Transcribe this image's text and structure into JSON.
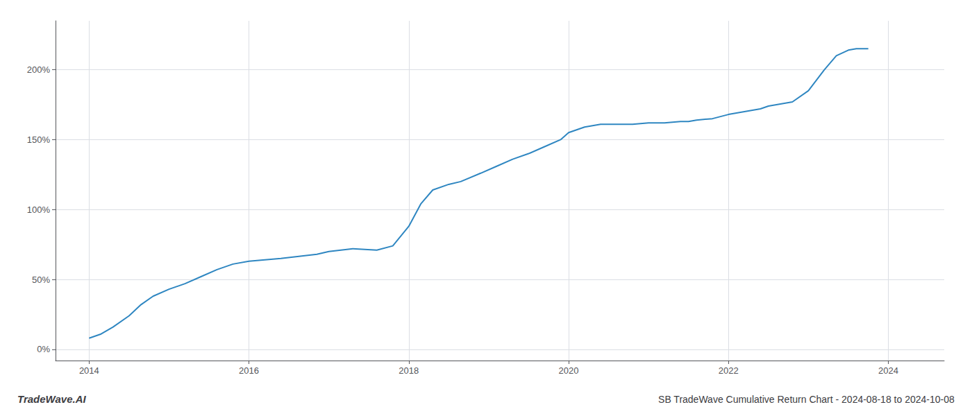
{
  "chart_data": {
    "type": "line",
    "title": "SB TradeWave Cumulative Return Chart - 2024-08-18 to 2024-10-08",
    "annotations": [
      "TradeWave.AI"
    ],
    "x": [
      2014.0,
      2014.15,
      2014.3,
      2014.5,
      2014.65,
      2014.8,
      2015.0,
      2015.2,
      2015.4,
      2015.6,
      2015.8,
      2016.0,
      2016.2,
      2016.4,
      2016.55,
      2016.7,
      2016.85,
      2017.0,
      2017.15,
      2017.3,
      2017.6,
      2017.8,
      2018.0,
      2018.15,
      2018.3,
      2018.5,
      2018.65,
      2018.9,
      2019.1,
      2019.3,
      2019.5,
      2019.7,
      2019.9,
      2020.0,
      2020.1,
      2020.2,
      2020.4,
      2020.5,
      2020.6,
      2020.8,
      2021.0,
      2021.2,
      2021.4,
      2021.5,
      2021.6,
      2021.8,
      2022.0,
      2022.2,
      2022.4,
      2022.5,
      2022.6,
      2022.8,
      2023.0,
      2023.2,
      2023.35,
      2023.5,
      2023.6,
      2023.7,
      2023.75
    ],
    "values": [
      8,
      11,
      16,
      24,
      32,
      38,
      43,
      47,
      52,
      57,
      61,
      63,
      64,
      65,
      66,
      67,
      68,
      70,
      71,
      72,
      71,
      74,
      88,
      104,
      114,
      118,
      120,
      126,
      131,
      136,
      140,
      145,
      150,
      155,
      157,
      159,
      161,
      161,
      161,
      161,
      162,
      162,
      163,
      163,
      164,
      165,
      168,
      170,
      172,
      174,
      175,
      177,
      185,
      200,
      210,
      214,
      215,
      215,
      215
    ],
    "color": "#2e86c1",
    "xlim": [
      2013.58,
      2024.7
    ],
    "ylim": [
      -8,
      235
    ],
    "xticks": [
      2014,
      2016,
      2018,
      2020,
      2022,
      2024
    ],
    "yticks": [
      {
        "value": 0,
        "label": "0%"
      },
      {
        "value": 50,
        "label": "50%"
      },
      {
        "value": 100,
        "label": "100%"
      },
      {
        "value": 150,
        "label": "150%"
      },
      {
        "value": 200,
        "label": "200%"
      }
    ],
    "grid": true
  }
}
